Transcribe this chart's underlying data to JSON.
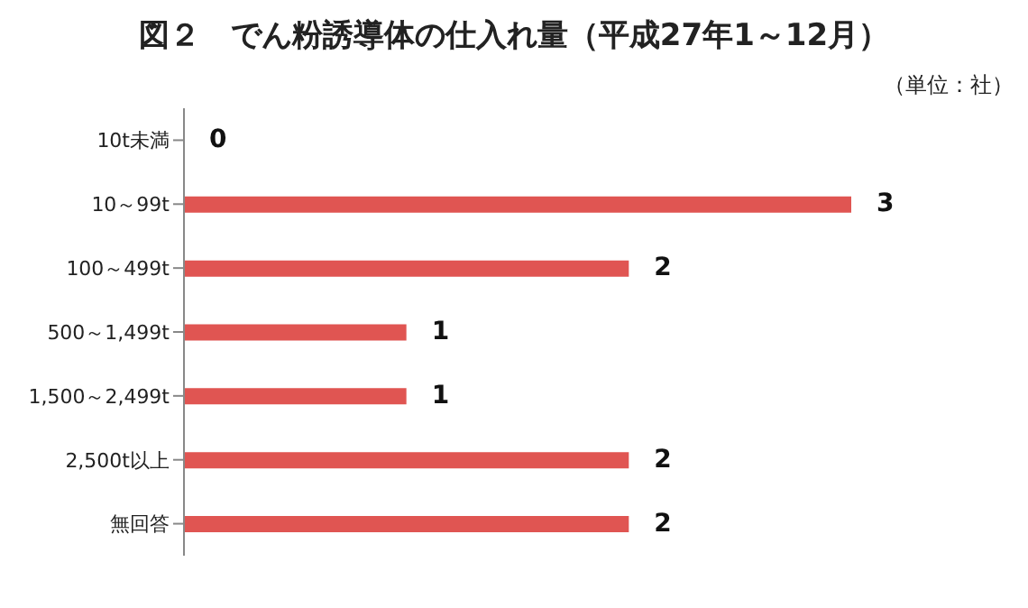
{
  "chart_data": {
    "type": "bar",
    "orientation": "horizontal",
    "title": "図２　でん粉誘導体の仕入れ量（平成27年1～12月）",
    "annotations": [
      "（単位：社）"
    ],
    "categories": [
      "10t未満",
      "10～99t",
      "100～499t",
      "500～1,499t",
      "1,500～2,499t",
      "2,500t以上",
      "無回答"
    ],
    "values": [
      0,
      3,
      2,
      1,
      1,
      2,
      2
    ],
    "color": "#e05552",
    "data_labels": true,
    "grid": false
  }
}
